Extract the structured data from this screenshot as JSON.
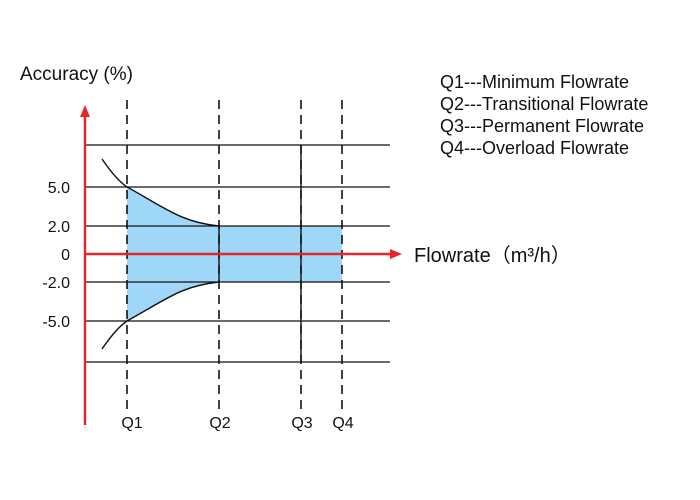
{
  "chart_data": {
    "type": "area",
    "ylabel": "Accuracy (%)",
    "xlabel": "Flowrate（m³/h）",
    "y_ticks": [
      "5.0",
      "2.0",
      "0",
      "-2.0",
      "-5.0"
    ],
    "x_ticks": [
      "Q1",
      "Q2",
      "Q3",
      "Q4"
    ],
    "legend": [
      "Q1---Minimum Flowrate",
      "Q2---Transitional Flowrate",
      "Q3---Permanent Flowrate",
      "Q4---Overload Flowrate"
    ],
    "series": [
      {
        "x": [
          "Q1",
          "Q2",
          "Q3",
          "Q4"
        ],
        "upper": [
          5.0,
          2.0,
          2.0,
          2.0
        ],
        "lower": [
          -5.0,
          -2.0,
          -2.0,
          -2.0
        ]
      }
    ],
    "colors": {
      "axis": "#e8232a",
      "band": "#9ed7f7",
      "lines": "#111111"
    }
  }
}
